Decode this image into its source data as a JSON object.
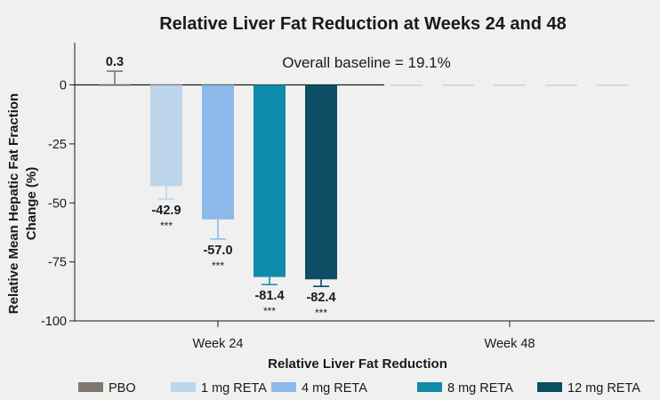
{
  "chart_data": {
    "type": "bar",
    "title": "Relative Liver Fat Reduction at Weeks 24 and 48",
    "xlabel": "Relative Liver Fat Reduction",
    "ylabel_line1": "Relative Mean Hepatic Fat Fraction",
    "ylabel_line2": "Change (%)",
    "annotation": "Overall baseline = 19.1%",
    "categories": [
      "Week 24",
      "Week 48"
    ],
    "ylim": [
      -100,
      17
    ],
    "yticks": [
      0,
      -25,
      -50,
      -75,
      -100
    ],
    "grid": false,
    "legend_position": "bottom",
    "series": [
      {
        "name": "PBO",
        "color": "#7f786e",
        "values": [
          0.3,
          0.0
        ],
        "error": [
          5.5,
          null
        ],
        "value_labels": [
          "0.3",
          ""
        ],
        "sig_labels": [
          "",
          ""
        ]
      },
      {
        "name": "1 mg RETA",
        "color": "#bcd5ea",
        "values": [
          -42.9,
          0.0
        ],
        "error": [
          5.5,
          null
        ],
        "value_labels": [
          "-42.9",
          ""
        ],
        "sig_labels": [
          "***",
          ""
        ]
      },
      {
        "name": "4 mg RETA",
        "color": "#8db9eb",
        "values": [
          -57.0,
          0.0
        ],
        "error": [
          8.3,
          null
        ],
        "value_labels": [
          "-57.0",
          ""
        ],
        "sig_labels": [
          "***",
          ""
        ]
      },
      {
        "name": "8 mg RETA",
        "color": "#0e8ca9",
        "values": [
          -81.4,
          -0.3
        ],
        "error": [
          3.2,
          null
        ],
        "value_labels": [
          "-81.4",
          ""
        ],
        "sig_labels": [
          "***",
          ""
        ]
      },
      {
        "name": "12 mg RETA",
        "color": "#0b4d63",
        "values": [
          -82.4,
          -0.3
        ],
        "error": [
          3.0,
          null
        ],
        "value_labels": [
          "-82.4",
          ""
        ],
        "sig_labels": [
          "***",
          ""
        ]
      }
    ]
  }
}
